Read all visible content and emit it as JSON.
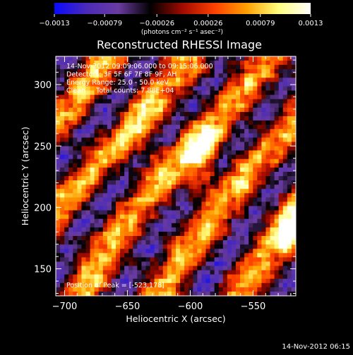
{
  "chart_data": {
    "type": "heatmap",
    "title": "Reconstructed RHESSI Image",
    "xlabel": "Heliocentric X (arcsec)",
    "ylabel": "Heliocentric Y (arcsec)",
    "xlim": [
      -707,
      -516
    ],
    "ylim": [
      128,
      323
    ],
    "xticks": [
      -700,
      -650,
      -600,
      -550
    ],
    "xtick_labels": [
      "−700",
      "−650",
      "−600",
      "−550"
    ],
    "yticks": [
      150,
      200,
      250,
      300
    ],
    "ytick_labels": [
      "150",
      "200",
      "250",
      "300"
    ],
    "colorbar": {
      "min": -0.0013,
      "max": 0.0013,
      "ticks": [
        -0.0013,
        -0.00079,
        -0.00026,
        0.00026,
        0.00079,
        0.0013
      ],
      "tick_labels": [
        "−0.0013",
        "−0.00079",
        "−0.00026",
        "0.00026",
        "0.00079",
        "0.0013"
      ],
      "unit_label": "(photons cm⁻² s⁻¹ asec⁻²)",
      "colors": [
        "#0a0aff",
        "#4a2ab8",
        "#6a3ca0",
        "#000000",
        "#a00a00",
        "#ff4000",
        "#ffa000",
        "#ffff80",
        "#ffffff"
      ]
    },
    "annotations": [
      "14-Nov-2012 09:09:06.000 to 09:15:06.000",
      "Detectors: 3F 5F 6F 7F 8F 9F, AH",
      "Energy Range: 25.0 - 50.0 keV",
      "Clean     Total counts: 7.88E+04"
    ],
    "peak_label": "Position of Peak = [-523,178]",
    "peak": [
      -523,
      178
    ],
    "grid": false,
    "pattern": "diagonal fringe stripes running lower-left to upper-right; bright yellow-white ridges near (-610,245) and (-523,178); dark/negative purple-blue lanes between"
  },
  "footer_timestamp": "14-Nov-2012 06:15"
}
